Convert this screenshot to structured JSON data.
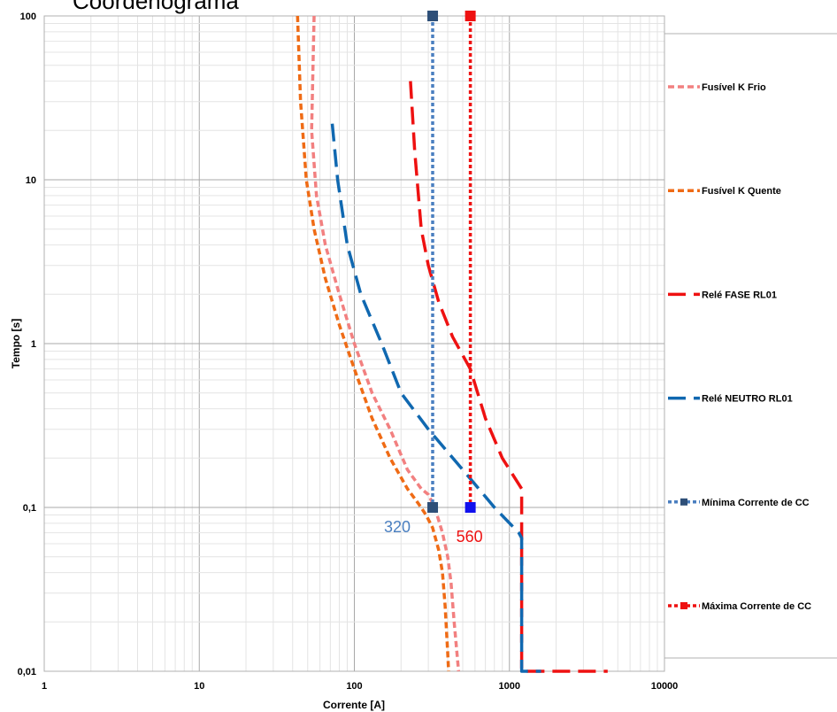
{
  "chart_data": {
    "type": "line",
    "title": "Coordenograma",
    "xlabel": "Corrente [A]",
    "ylabel": "Tempo [s]",
    "x_scale": "log",
    "y_scale": "log",
    "xlim": [
      1,
      10000
    ],
    "ylim": [
      0.01,
      100
    ],
    "x_ticks": [
      {
        "value": 1,
        "label": "1"
      },
      {
        "value": 10,
        "label": "10"
      },
      {
        "value": 100,
        "label": "100"
      },
      {
        "value": 1000,
        "label": "1000"
      },
      {
        "value": 10000,
        "label": "10000"
      }
    ],
    "y_ticks": [
      {
        "value": 0.01,
        "label": "0,01"
      },
      {
        "value": 0.1,
        "label": "0,1"
      },
      {
        "value": 1,
        "label": "1"
      },
      {
        "value": 10,
        "label": "10"
      },
      {
        "value": 100,
        "label": "100"
      }
    ],
    "grid": true,
    "legend_position": "right",
    "series": [
      {
        "name": "Fusível K Frio",
        "color": "#f28080",
        "dash": "short",
        "marker": "none",
        "points": [
          [
            55,
            100
          ],
          [
            53,
            20
          ],
          [
            57,
            8
          ],
          [
            65,
            4
          ],
          [
            80,
            2
          ],
          [
            100,
            1
          ],
          [
            130,
            0.5
          ],
          [
            170,
            0.3
          ],
          [
            220,
            0.17
          ],
          [
            270,
            0.13
          ],
          [
            300,
            0.12
          ],
          [
            330,
            0.1
          ],
          [
            370,
            0.07
          ],
          [
            400,
            0.05
          ],
          [
            420,
            0.035
          ],
          [
            440,
            0.02
          ],
          [
            470,
            0.01
          ]
        ]
      },
      {
        "name": "Fusível K Quente",
        "color": "#ef6b15",
        "dash": "short",
        "marker": "none",
        "points": [
          [
            43,
            100
          ],
          [
            45,
            30
          ],
          [
            49,
            10
          ],
          [
            55,
            5
          ],
          [
            65,
            2.5
          ],
          [
            80,
            1.3
          ],
          [
            100,
            0.7
          ],
          [
            130,
            0.35
          ],
          [
            170,
            0.2
          ],
          [
            220,
            0.13
          ],
          [
            260,
            0.105
          ],
          [
            290,
            0.09
          ],
          [
            320,
            0.075
          ],
          [
            350,
            0.055
          ],
          [
            370,
            0.04
          ],
          [
            385,
            0.025
          ],
          [
            400,
            0.013
          ],
          [
            405,
            0.01
          ]
        ]
      },
      {
        "name": "Relé FASE RL01",
        "color": "#ee1111",
        "dash": "long",
        "marker": "none",
        "points": [
          [
            230,
            40
          ],
          [
            245,
            15
          ],
          [
            270,
            5
          ],
          [
            300,
            3
          ],
          [
            350,
            1.8
          ],
          [
            430,
            1.1
          ],
          [
            560,
            0.7
          ],
          [
            700,
            0.35
          ],
          [
            900,
            0.2
          ],
          [
            1200,
            0.13
          ],
          [
            1200,
            0.01
          ],
          [
            1700,
            0.01
          ],
          [
            4300,
            0.01
          ]
        ]
      },
      {
        "name": "Relé NEUTRO RL01",
        "color": "#1068b0",
        "dash": "long",
        "marker": "none",
        "points": [
          [
            72,
            22
          ],
          [
            78,
            10
          ],
          [
            90,
            4
          ],
          [
            110,
            2
          ],
          [
            150,
            1
          ],
          [
            200,
            0.5
          ],
          [
            300,
            0.3
          ],
          [
            500,
            0.17
          ],
          [
            800,
            0.1
          ],
          [
            1150,
            0.07
          ],
          [
            1200,
            0.065
          ],
          [
            1200,
            0.01
          ],
          [
            1600,
            0.01
          ]
        ]
      },
      {
        "name": "Mínima Corrente de CC",
        "color": "#4a7fc0",
        "dash": "dot",
        "marker": "square",
        "marker_color": "#2e4f78",
        "points": [
          [
            320,
            100
          ],
          [
            320,
            0.1
          ]
        ]
      },
      {
        "name": "Máxima Corrente de CC",
        "color": "#ee1111",
        "dash": "dot",
        "marker": "square",
        "marker_colors": [
          "#ee1111",
          "#1111ee"
        ],
        "points": [
          [
            560,
            100
          ],
          [
            560,
            0.1
          ]
        ]
      }
    ],
    "annotations": [
      {
        "text": "320",
        "x": 320,
        "y": 0.1,
        "color": "#4a7fc0"
      },
      {
        "text": "560",
        "x": 560,
        "y": 0.1,
        "color": "#ee1111"
      }
    ]
  }
}
